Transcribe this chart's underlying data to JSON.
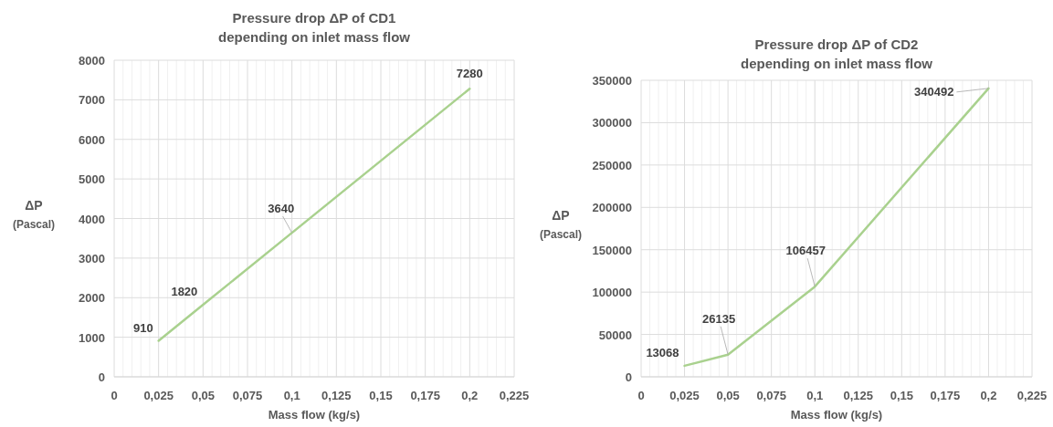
{
  "chart_data": [
    {
      "type": "line",
      "title": "Pressure drop ΔP of CD1\ndepending on inlet mass flow",
      "xlabel": "Mass flow (kg/s)",
      "ylabel": "ΔP\n(Pascal)",
      "x": [
        0.025,
        0.05,
        0.1,
        0.2
      ],
      "series": [
        {
          "color": "#a9d18e",
          "values": [
            910,
            1820,
            3640,
            7280
          ]
        }
      ],
      "data_labels": true,
      "grid": true,
      "marker": "none",
      "line_style": "solid",
      "xlim": [
        0,
        0.225
      ],
      "ylim": [
        0,
        8000
      ],
      "yticks": [
        0,
        1000,
        2000,
        3000,
        4000,
        5000,
        6000,
        7000,
        8000
      ],
      "xticks": [
        0,
        {
          "value": 0.005,
          "label": null
        },
        {
          "value": 0.01,
          "label": null
        },
        {
          "value": 0.015,
          "label": null
        },
        {
          "value": 0.02,
          "label": null
        },
        {
          "value": 0.025,
          "label": "0,025"
        },
        {
          "value": 0.03,
          "label": null
        },
        {
          "value": 0.035,
          "label": null
        },
        {
          "value": 0.04,
          "label": null
        },
        {
          "value": 0.045,
          "label": null
        },
        {
          "value": 0.05,
          "label": "0,05"
        },
        {
          "value": 0.055,
          "label": null
        },
        {
          "value": 0.06,
          "label": null
        },
        {
          "value": 0.065,
          "label": null
        },
        {
          "value": 0.07,
          "label": null
        },
        {
          "value": 0.075,
          "label": "0,075"
        },
        {
          "value": 0.08,
          "label": null
        },
        {
          "value": 0.085,
          "label": null
        },
        {
          "value": 0.09,
          "label": null
        },
        {
          "value": 0.095,
          "label": null
        },
        {
          "value": 0.1,
          "label": "0,1"
        },
        {
          "value": 0.105,
          "label": null
        },
        {
          "value": 0.11,
          "label": null
        },
        {
          "value": 0.115,
          "label": null
        },
        {
          "value": 0.12,
          "label": null
        },
        {
          "value": 0.125,
          "label": "0,125"
        },
        {
          "value": 0.13,
          "label": null
        },
        {
          "value": 0.135,
          "label": null
        },
        {
          "value": 0.14,
          "label": null
        },
        {
          "value": 0.145,
          "label": null
        },
        {
          "value": 0.15,
          "label": "0,15"
        },
        {
          "value": 0.155,
          "label": null
        },
        {
          "value": 0.16,
          "label": null
        },
        {
          "value": 0.165,
          "label": null
        },
        {
          "value": 0.17,
          "label": null
        },
        {
          "value": 0.175,
          "label": "0,175"
        },
        {
          "value": 0.18,
          "label": null
        },
        {
          "value": 0.185,
          "label": null
        },
        {
          "value": 0.19,
          "label": null
        },
        {
          "value": 0.195,
          "label": null
        },
        {
          "value": 0.2,
          "label": "0,2"
        },
        {
          "value": 0.205,
          "label": null
        },
        {
          "value": 0.21,
          "label": null
        },
        {
          "value": 0.215,
          "label": null
        },
        {
          "value": 0.22,
          "label": null
        },
        {
          "value": 0.225,
          "label": "0,225"
        }
      ]
    },
    {
      "type": "line",
      "title": "Pressure drop ΔP of CD2\ndepending on inlet mass flow",
      "xlabel": "Mass flow (kg/s)",
      "ylabel": "ΔP\n(Pascal)",
      "x": [
        0.025,
        0.05,
        0.1,
        0.2
      ],
      "series": [
        {
          "color": "#a9d18e",
          "values": [
            13068,
            26135,
            106457,
            340492
          ]
        }
      ],
      "data_labels": true,
      "grid": true,
      "marker": "none",
      "line_style": "solid",
      "xlim": [
        0,
        0.225
      ],
      "ylim": [
        0,
        350000
      ],
      "yticks": [
        0,
        50000,
        100000,
        150000,
        200000,
        250000,
        300000,
        350000
      ],
      "xticks": [
        0,
        {
          "value": 0.005,
          "label": null
        },
        {
          "value": 0.01,
          "label": null
        },
        {
          "value": 0.015,
          "label": null
        },
        {
          "value": 0.02,
          "label": null
        },
        {
          "value": 0.025,
          "label": "0,025"
        },
        {
          "value": 0.03,
          "label": null
        },
        {
          "value": 0.035,
          "label": null
        },
        {
          "value": 0.04,
          "label": null
        },
        {
          "value": 0.045,
          "label": null
        },
        {
          "value": 0.05,
          "label": "0,05"
        },
        {
          "value": 0.055,
          "label": null
        },
        {
          "value": 0.06,
          "label": null
        },
        {
          "value": 0.065,
          "label": null
        },
        {
          "value": 0.07,
          "label": null
        },
        {
          "value": 0.075,
          "label": "0,075"
        },
        {
          "value": 0.08,
          "label": null
        },
        {
          "value": 0.085,
          "label": null
        },
        {
          "value": 0.09,
          "label": null
        },
        {
          "value": 0.095,
          "label": null
        },
        {
          "value": 0.1,
          "label": "0,1"
        },
        {
          "value": 0.105,
          "label": null
        },
        {
          "value": 0.11,
          "label": null
        },
        {
          "value": 0.115,
          "label": null
        },
        {
          "value": 0.12,
          "label": null
        },
        {
          "value": 0.125,
          "label": "0,125"
        },
        {
          "value": 0.13,
          "label": null
        },
        {
          "value": 0.135,
          "label": null
        },
        {
          "value": 0.14,
          "label": null
        },
        {
          "value": 0.145,
          "label": null
        },
        {
          "value": 0.15,
          "label": "0,15"
        },
        {
          "value": 0.155,
          "label": null
        },
        {
          "value": 0.16,
          "label": null
        },
        {
          "value": 0.165,
          "label": null
        },
        {
          "value": 0.17,
          "label": null
        },
        {
          "value": 0.175,
          "label": "0,175"
        },
        {
          "value": 0.18,
          "label": null
        },
        {
          "value": 0.185,
          "label": null
        },
        {
          "value": 0.19,
          "label": null
        },
        {
          "value": 0.195,
          "label": null
        },
        {
          "value": 0.2,
          "label": "0,2"
        },
        {
          "value": 0.205,
          "label": null
        },
        {
          "value": 0.21,
          "label": null
        },
        {
          "value": 0.215,
          "label": null
        },
        {
          "value": 0.22,
          "label": null
        },
        {
          "value": 0.225,
          "label": "0,225"
        }
      ]
    }
  ]
}
